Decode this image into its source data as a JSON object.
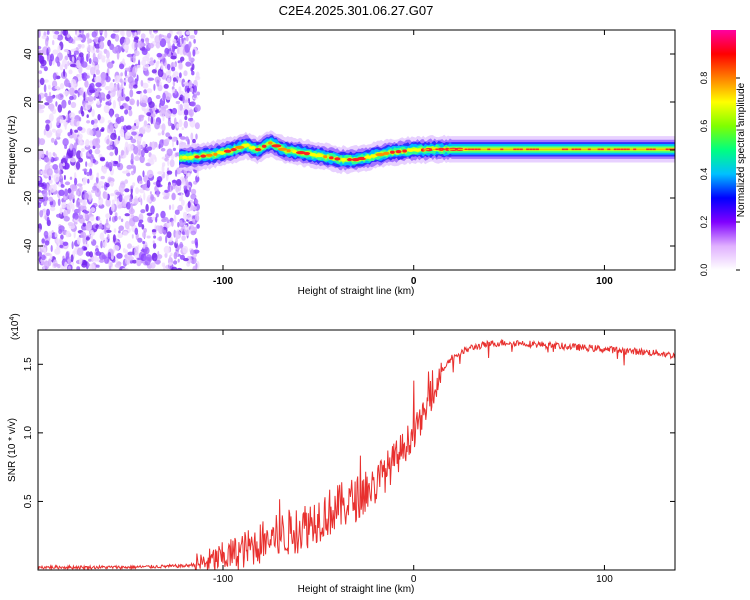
{
  "figure": {
    "title": "C2E4.2025.301.06.27.G07"
  },
  "chart_data": [
    {
      "type": "heatmap",
      "title": "C2E4.2025.301.06.27.G07",
      "xlabel": "Height of straight line (km)",
      "ylabel": "Frequency (Hz)",
      "xlim": [
        -197,
        137
      ],
      "ylim": [
        -50,
        50
      ],
      "xticks": [
        {
          "v": -100,
          "label": "-100"
        },
        {
          "v": 0,
          "label": "0"
        },
        {
          "v": 100,
          "label": "100"
        }
      ],
      "yticks": [
        {
          "v": -40,
          "label": "-40"
        },
        {
          "v": -20,
          "label": "-20"
        },
        {
          "v": 0,
          "label": "0"
        },
        {
          "v": 20,
          "label": "20"
        },
        {
          "v": 40,
          "label": "40"
        }
      ],
      "noise_region_x": [
        -197,
        -113
      ],
      "ridge": {
        "x": [
          -123,
          -115,
          -105,
          -95,
          -88,
          -82,
          -75,
          -68,
          -60,
          -52,
          -45,
          -38,
          -30,
          -24,
          -18,
          -12,
          -6,
          0,
          5,
          10,
          20,
          40,
          60,
          80,
          100,
          120,
          137
        ],
        "freq_hz": [
          -3,
          -3,
          -2,
          0,
          2,
          0,
          3,
          0,
          -1,
          -2,
          -3,
          -4,
          -4,
          -3,
          -2,
          -1,
          -0.5,
          0,
          0,
          0.3,
          0.3,
          0.3,
          0.3,
          0.3,
          0.3,
          0.3,
          0.3
        ]
      },
      "colorbar": {
        "label": "Normalized spectral amplitude",
        "range": [
          0,
          1
        ],
        "ticks": [
          {
            "v": 0.0,
            "label": "0.0"
          },
          {
            "v": 0.2,
            "label": "0.2"
          },
          {
            "v": 0.4,
            "label": "0.4"
          },
          {
            "v": 0.6,
            "label": "0.6"
          },
          {
            "v": 0.8,
            "label": "0.8"
          }
        ],
        "colors": [
          "#ffffff",
          "#e0b0ff",
          "#8000ff",
          "#0000ff",
          "#00c0ff",
          "#00ff80",
          "#80ff00",
          "#ffff00",
          "#ff8000",
          "#ff0000",
          "#ff00a0"
        ]
      }
    },
    {
      "type": "line",
      "xlabel": "Height of straight line (km)",
      "ylabel": "SNR (10 * v/v)",
      "y_scale_label": "(x10",
      "y_scale_exp": "4",
      "xlim": [
        -197,
        137
      ],
      "ylim": [
        0,
        1.75
      ],
      "xticks": [
        {
          "v": -100,
          "label": "-100"
        },
        {
          "v": 0,
          "label": "0"
        },
        {
          "v": 100,
          "label": "100"
        }
      ],
      "yticks": [
        {
          "v": 0.5,
          "label": "0.5"
        },
        {
          "v": 1.0,
          "label": "1.0"
        },
        {
          "v": 1.5,
          "label": "1.5"
        }
      ],
      "series": [
        {
          "name": "SNR",
          "color": "#e8302e",
          "x": [
            -197,
            -150,
            -120,
            -110,
            -100,
            -90,
            -80,
            -70,
            -60,
            -50,
            -40,
            -30,
            -20,
            -10,
            0,
            5,
            10,
            15,
            20,
            30,
            40,
            50,
            60,
            70,
            80,
            90,
            100,
            110,
            120,
            130,
            137
          ],
          "y": [
            0.02,
            0.02,
            0.03,
            0.05,
            0.09,
            0.14,
            0.2,
            0.25,
            0.3,
            0.38,
            0.45,
            0.52,
            0.62,
            0.8,
            1.0,
            1.12,
            1.28,
            1.45,
            1.55,
            1.62,
            1.65,
            1.66,
            1.65,
            1.64,
            1.63,
            1.62,
            1.61,
            1.6,
            1.59,
            1.58,
            1.56
          ]
        }
      ]
    }
  ]
}
